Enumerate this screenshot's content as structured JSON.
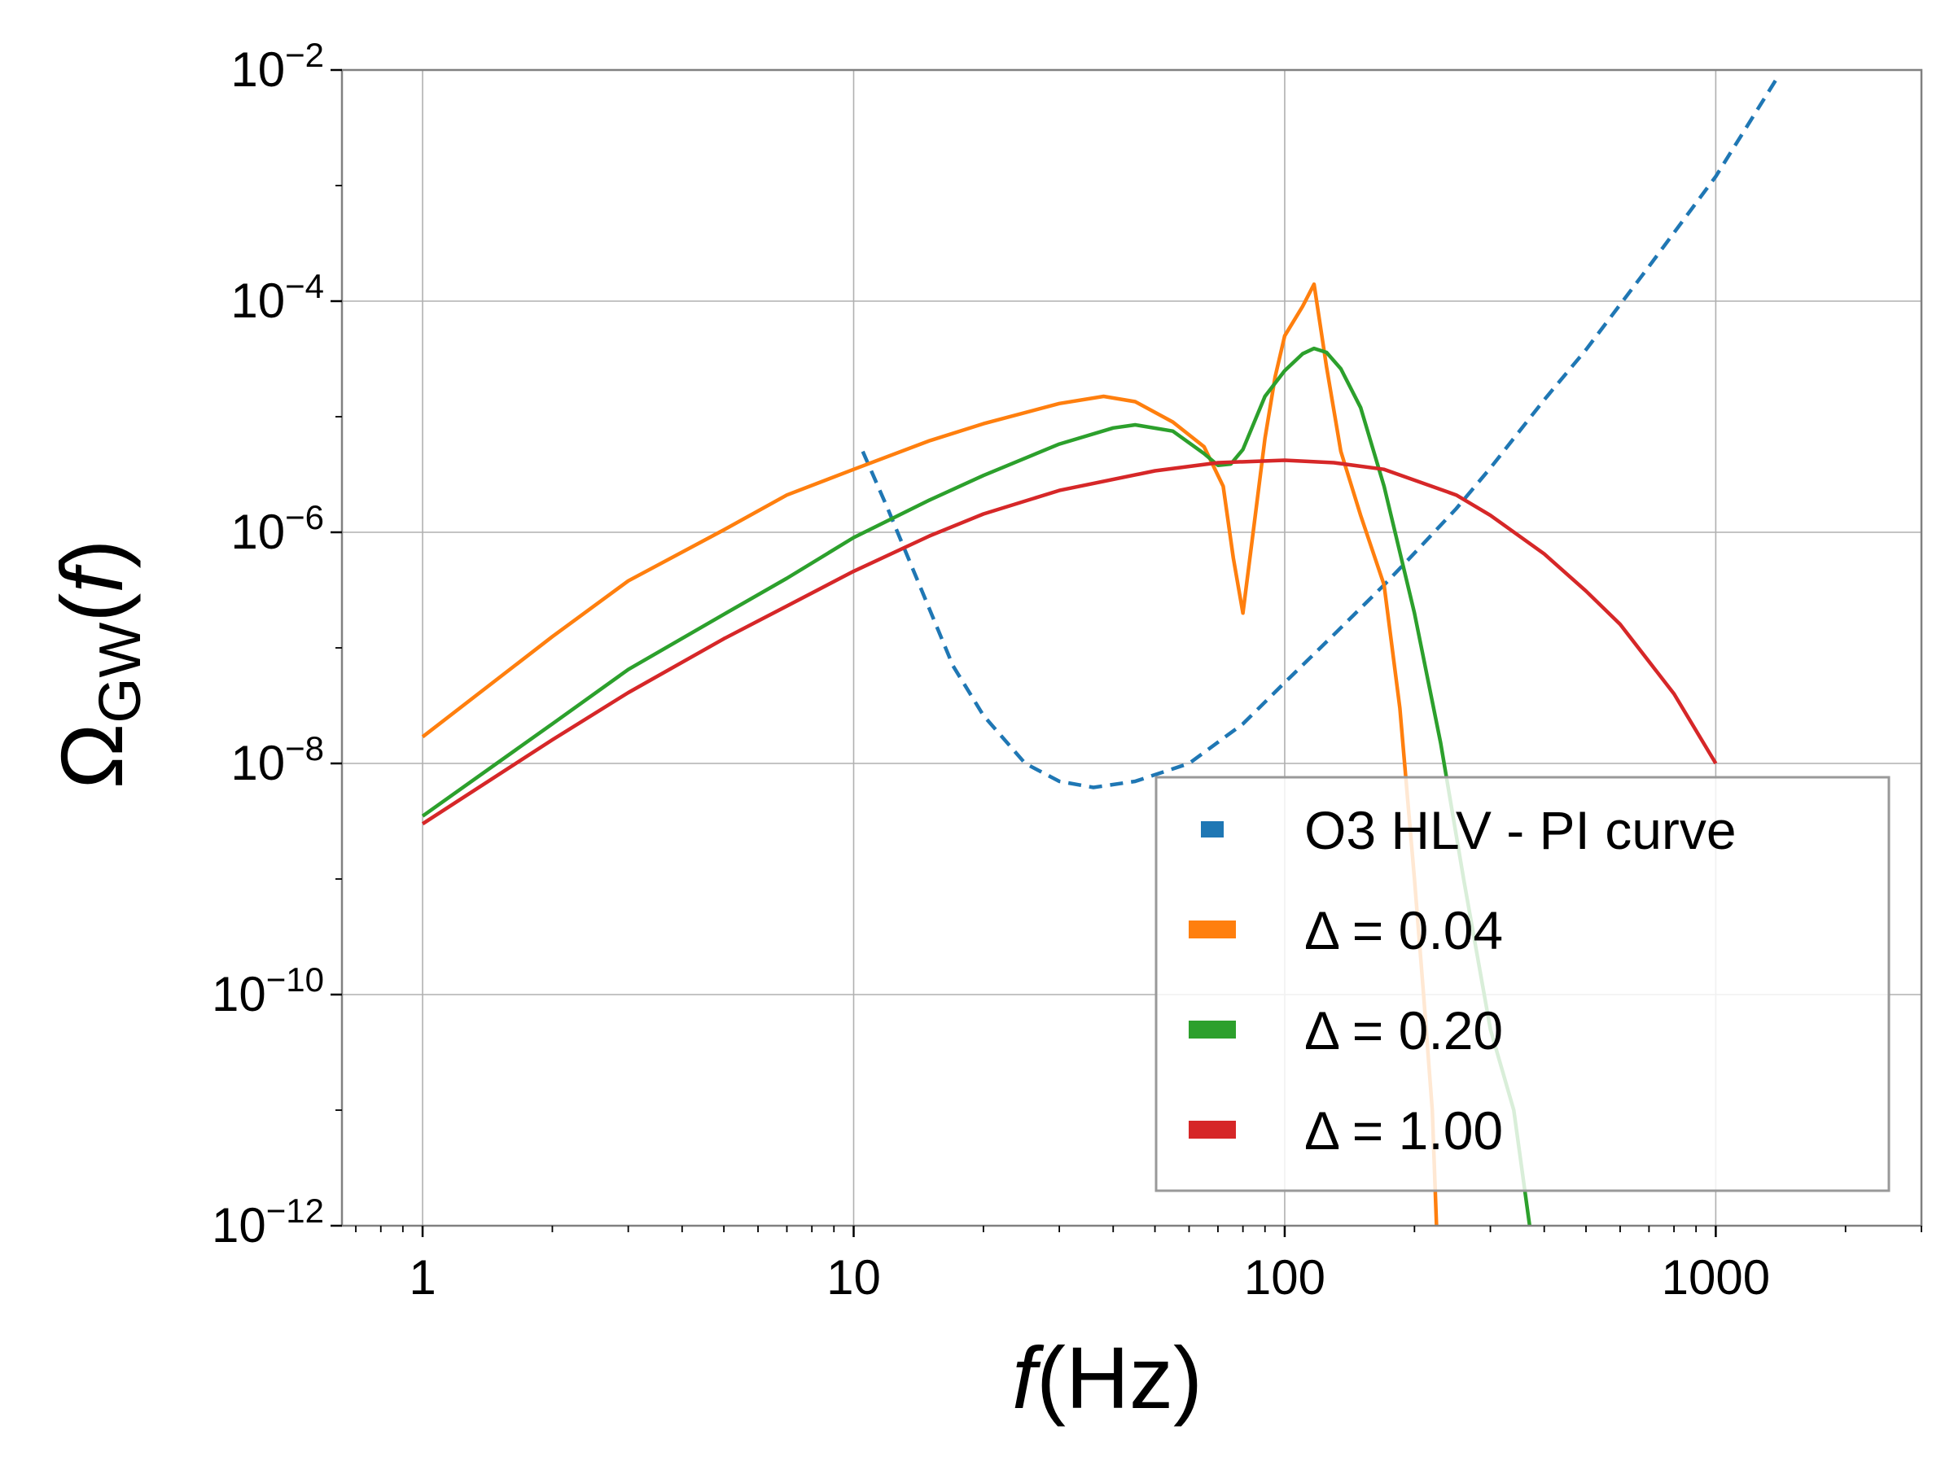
{
  "chart_data": {
    "type": "line",
    "title": "",
    "xlabel": {
      "italic": "f",
      "rest": "(Hz)"
    },
    "ylabel": {
      "main": "Ω",
      "sub": "GW",
      "paren_open": "(",
      "italic": "f",
      "paren_close": ")"
    },
    "xscale": "log",
    "yscale": "log",
    "xlim": [
      0.65,
      3000
    ],
    "ylim": [
      1e-12,
      0.01
    ],
    "grid": true,
    "legend_position": "lower-right",
    "x_ticks": [
      {
        "value": 1,
        "label": "1"
      },
      {
        "value": 10,
        "label": "10"
      },
      {
        "value": 100,
        "label": "100"
      },
      {
        "value": 1000,
        "label": "1000"
      }
    ],
    "y_ticks": [
      {
        "value": 1e-12,
        "base": "10",
        "exp": "−12"
      },
      {
        "value": 1e-10,
        "base": "10",
        "exp": "−10"
      },
      {
        "value": 1e-08,
        "base": "10",
        "exp": "−8"
      },
      {
        "value": 1e-06,
        "base": "10",
        "exp": "−6"
      },
      {
        "value": 0.0001,
        "base": "10",
        "exp": "−4"
      },
      {
        "value": 0.01,
        "base": "10",
        "exp": "−2"
      }
    ],
    "series": [
      {
        "name": "O3 HLV - PI curve",
        "color": "#1f77b4",
        "style": "dashed",
        "x": [
          10.5,
          12,
          14,
          17,
          20,
          25,
          30,
          36,
          45,
          60,
          80,
          100,
          130,
          170,
          200,
          250,
          300,
          400,
          500,
          700,
          1000,
          1400
        ],
        "y": [
          5e-06,
          1.6e-06,
          4e-07,
          7e-08,
          2.6e-08,
          1e-08,
          7e-09,
          6.2e-09,
          7e-09,
          1e-08,
          2.2e-08,
          5e-08,
          1.3e-07,
          3.5e-07,
          6.6e-07,
          1.6e-06,
          3.6e-06,
          1.4e-05,
          3.8e-05,
          0.0002,
          0.0012,
          0.009
        ]
      },
      {
        "name": "Δ =  0.04",
        "color": "#ff7f0e",
        "style": "solid",
        "x": [
          1,
          2,
          3,
          5,
          7,
          10,
          15,
          20,
          30,
          38,
          45,
          55,
          65,
          72,
          76,
          80,
          85,
          90,
          95,
          100,
          110,
          117,
          125,
          135,
          150,
          170,
          185,
          200,
          210,
          220,
          225
        ],
        "y": [
          1.7e-08,
          1.25e-07,
          3.8e-07,
          1.05e-06,
          2.1e-06,
          3.5e-06,
          6.2e-06,
          8.7e-06,
          1.3e-05,
          1.5e-05,
          1.35e-05,
          9e-06,
          5.5e-06,
          2.5e-06,
          6e-07,
          2e-07,
          1.2e-06,
          6.5e-06,
          2.2e-05,
          5e-05,
          9e-05,
          0.00014,
          2.7e-05,
          5e-06,
          1.4e-06,
          3.5e-07,
          3e-08,
          1e-09,
          1e-10,
          1e-11,
          1e-12
        ]
      },
      {
        "name": "Δ =  0.20",
        "color": "#2ca02c",
        "style": "solid",
        "x": [
          1,
          2,
          3,
          5,
          7,
          10,
          15,
          20,
          30,
          40,
          45,
          55,
          65,
          70,
          75,
          80,
          90,
          100,
          110,
          117,
          125,
          135,
          150,
          170,
          200,
          230,
          260,
          300,
          340,
          370
        ],
        "y": [
          3.5e-09,
          2.2e-08,
          6.5e-08,
          1.95e-07,
          4e-07,
          9e-07,
          1.9e-06,
          3.1e-06,
          5.8e-06,
          8e-06,
          8.5e-06,
          7.5e-06,
          4.8e-06,
          3.8e-06,
          3.9e-06,
          5.2e-06,
          1.5e-05,
          2.5e-05,
          3.5e-05,
          3.9e-05,
          3.6e-05,
          2.6e-05,
          1.2e-05,
          2.5e-06,
          2e-07,
          1.5e-08,
          1e-09,
          5e-11,
          1e-11,
          1e-12
        ]
      },
      {
        "name": "Δ =  1.00",
        "color": "#d62728",
        "style": "solid",
        "x": [
          1,
          2,
          3,
          5,
          7,
          10,
          15,
          20,
          30,
          50,
          70,
          100,
          130,
          170,
          250,
          300,
          400,
          500,
          600,
          800,
          1000
        ],
        "y": [
          3e-09,
          1.6e-08,
          4.1e-08,
          1.2e-07,
          2.3e-07,
          4.6e-07,
          9.3e-07,
          1.44e-06,
          2.3e-06,
          3.4e-06,
          4e-06,
          4.2e-06,
          4e-06,
          3.5e-06,
          2.1e-06,
          1.4e-06,
          6.5e-07,
          3.1e-07,
          1.6e-07,
          4e-08,
          1e-08
        ]
      }
    ]
  }
}
